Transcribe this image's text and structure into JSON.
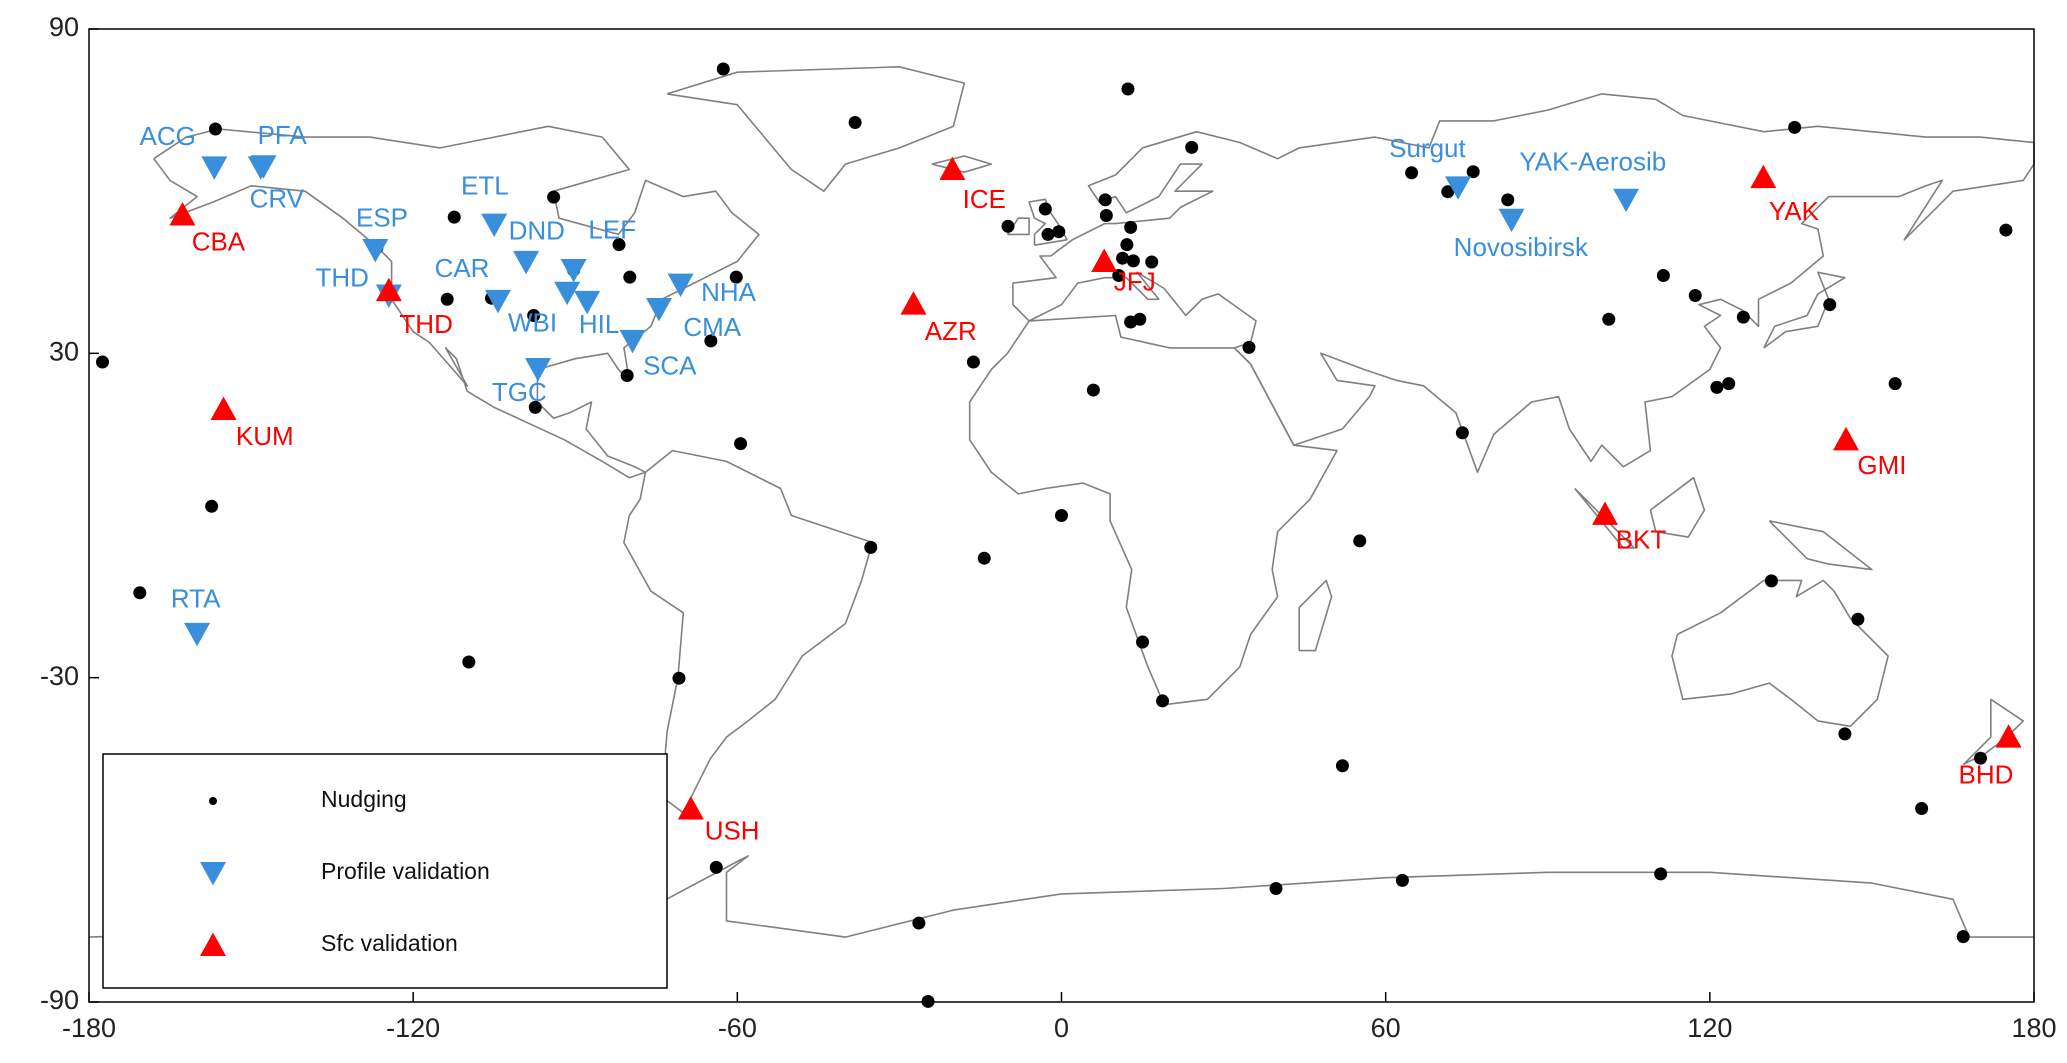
{
  "chart_data": {
    "type": "scatter",
    "xlim": [
      -180,
      180
    ],
    "ylim": [
      -90,
      90
    ],
    "xticks": [
      -180,
      -120,
      -60,
      0,
      60,
      120,
      180
    ],
    "yticks": [
      -90,
      -30,
      30,
      90
    ],
    "grid": false,
    "legend": "lower left",
    "series": [
      {
        "name": "Nudging",
        "color": "#000000",
        "marker": "dot",
        "x": [
          -62.6,
          -156.6,
          -38.2,
          12.3,
          64.8,
          71.5,
          76.2,
          82.6,
          135.7,
          174.8,
          -94.0,
          -112.4,
          -105.0,
          -126.7,
          -81.9,
          -79.9,
          -90.3,
          -113.7,
          -105.5,
          -97.7,
          -64.9,
          -60.2,
          -80.4,
          -97.4,
          -59.4,
          -177.5,
          -157.3,
          -170.6,
          -109.7,
          -70.8,
          -35.3,
          -14.3,
          0.0,
          5.9,
          -16.3,
          15.0,
          18.7,
          -63.9,
          -26.4,
          -24.7,
          39.7,
          63.1,
          52.0,
          55.2,
          74.2,
          34.7,
          -9.9,
          -3.0,
          -2.5,
          -0.5,
          8.1,
          8.3,
          12.8,
          12.1,
          11.3,
          13.3,
          16.7,
          10.6,
          12.8,
          14.5,
          24.1,
          111.4,
          101.3,
          117.3,
          126.2,
          142.2,
          121.3,
          123.5,
          154.3,
          131.4,
          147.4,
          145.0,
          159.2,
          170.1,
          166.9,
          110.9
        ],
        "y": [
          82.6,
          71.5,
          72.7,
          78.9,
          63.4,
          59.9,
          63.6,
          58.4,
          71.8,
          52.8,
          58.9,
          55.2,
          54.3,
          49.6,
          50.1,
          44.1,
          45.4,
          40.0,
          40.2,
          37.0,
          32.3,
          44.1,
          25.9,
          20.0,
          13.3,
          28.4,
          1.7,
          -14.3,
          -27.1,
          -30.1,
          -5.9,
          -7.9,
          0.0,
          23.2,
          28.4,
          -23.4,
          -34.3,
          -65.1,
          -75.4,
          -89.9,
          -69.0,
          -67.5,
          -46.3,
          -4.7,
          15.3,
          31.1,
          53.5,
          56.7,
          52.0,
          52.5,
          58.4,
          55.5,
          53.3,
          50.1,
          47.6,
          47.1,
          46.9,
          44.4,
          35.8,
          36.3,
          68.1,
          44.4,
          36.3,
          40.7,
          36.7,
          39.0,
          23.7,
          24.4,
          24.4,
          -12.1,
          -19.2,
          -40.4,
          -54.2,
          -44.9,
          -77.9,
          -66.3
        ]
      },
      {
        "name": "Profile validation",
        "color": "#3a8fdc",
        "marker": "triangle-down",
        "labels": [
          "ACG",
          "PFA",
          "CRV",
          "ESP",
          "THD",
          "ETL",
          "DND",
          "LEF",
          "CAR",
          "WBI",
          "HIL",
          "NHA",
          "CMA",
          "SCA",
          "TGC",
          "RTA",
          "Surgut",
          "Novosibirsk",
          "YAK-Aerosib"
        ],
        "x": [
          -156.8,
          -147.7,
          -148.2,
          -127.0,
          -124.5,
          -105.0,
          -99.1,
          -90.3,
          -104.3,
          -91.5,
          -87.8,
          -70.5,
          -74.5,
          -79.4,
          -96.9,
          -160.0,
          73.4,
          83.3,
          104.5
        ],
        "y": [
          64.4,
          64.6,
          64.4,
          49.1,
          40.7,
          53.8,
          46.9,
          45.4,
          39.7,
          41.2,
          39.5,
          42.7,
          38.2,
          32.3,
          27.1,
          -21.9,
          60.7,
          54.7,
          58.4
        ]
      },
      {
        "name": "Sfc validation",
        "color": "#ff0000",
        "marker": "triangle-up",
        "labels": [
          "CBA",
          "THD",
          "KUM",
          "ICE",
          "AZR",
          "JFJ",
          "YAK",
          "GMI",
          "BKT",
          "BHD",
          "USH"
        ],
        "x": [
          -162.7,
          -124.5,
          -155.1,
          -20.2,
          -27.4,
          7.9,
          129.9,
          145.2,
          100.6,
          175.3,
          -68.6
        ],
        "y": [
          55.7,
          41.7,
          19.7,
          64.1,
          39.2,
          47.1,
          62.6,
          14.1,
          0.3,
          -40.9,
          -54.2
        ]
      }
    ]
  }
}
